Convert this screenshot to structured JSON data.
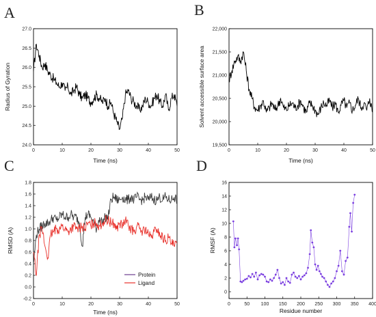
{
  "chart_data": [
    {
      "panel": "A",
      "type": "line",
      "xlabel": "Time (ns)",
      "ylabel": "Radius of Gyration",
      "xlim": [
        0,
        50
      ],
      "ylim": [
        24.0,
        27.0
      ],
      "xticks": [
        0,
        10,
        20,
        30,
        40,
        50
      ],
      "yticks": [
        24.0,
        24.5,
        25.0,
        25.5,
        26.0,
        26.5,
        27.0
      ],
      "ytick_decimals": 1,
      "series": [
        {
          "color": "#000000",
          "x": [
            0,
            1,
            2,
            3,
            4,
            5,
            6,
            7,
            8,
            9,
            10,
            11,
            12,
            13,
            14,
            15,
            16,
            17,
            18,
            19,
            20,
            21,
            22,
            23,
            24,
            25,
            26,
            27,
            28,
            29,
            30,
            31,
            32,
            33,
            34,
            35,
            36,
            37,
            38,
            39,
            40,
            41,
            42,
            43,
            44,
            45,
            46,
            47,
            48,
            49,
            50
          ],
          "values": [
            25.9,
            26.6,
            26.3,
            26.0,
            26.1,
            25.9,
            25.8,
            25.7,
            25.6,
            25.5,
            25.6,
            25.4,
            25.5,
            25.3,
            25.4,
            25.5,
            25.3,
            25.2,
            25.3,
            25.2,
            25.1,
            25.2,
            25.3,
            25.2,
            25.1,
            25.2,
            25.0,
            25.1,
            24.8,
            24.6,
            24.4,
            24.7,
            25.3,
            25.4,
            25.2,
            25.1,
            25.0,
            24.9,
            25.0,
            25.2,
            25.1,
            25.0,
            25.2,
            25.3,
            25.1,
            25.0,
            25.3,
            24.9,
            25.2,
            25.3,
            25.0
          ]
        }
      ]
    },
    {
      "panel": "B",
      "type": "line",
      "xlabel": "Time (ns)",
      "ylabel": "Solvent accessible surface area",
      "xlim": [
        0,
        50
      ],
      "ylim": [
        19500,
        22000
      ],
      "xticks": [
        0,
        10,
        20,
        30,
        40,
        50
      ],
      "yticks": [
        19500,
        20000,
        20500,
        21000,
        21500,
        22000
      ],
      "ytick_labels": [
        "19,500",
        "20,000",
        "20,500",
        "21,000",
        "21,500",
        "22,000"
      ],
      "series": [
        {
          "color": "#000000",
          "x": [
            0,
            1,
            2,
            3,
            4,
            5,
            6,
            7,
            8,
            9,
            10,
            11,
            12,
            13,
            14,
            15,
            16,
            17,
            18,
            19,
            20,
            21,
            22,
            23,
            24,
            25,
            26,
            27,
            28,
            29,
            30,
            31,
            32,
            33,
            34,
            35,
            36,
            37,
            38,
            39,
            40,
            41,
            42,
            43,
            44,
            45,
            46,
            47,
            48,
            49,
            50
          ],
          "values": [
            20900,
            21100,
            21300,
            21400,
            21300,
            21500,
            21100,
            20700,
            20500,
            20300,
            20250,
            20350,
            20450,
            20200,
            20300,
            20400,
            20250,
            20350,
            20500,
            20300,
            20250,
            20350,
            20400,
            20300,
            20350,
            20450,
            20300,
            20200,
            20400,
            20350,
            20250,
            20150,
            20300,
            20400,
            20350,
            20450,
            20300,
            20400,
            20200,
            20350,
            20450,
            20300,
            20400,
            20250,
            20350,
            20500,
            20300,
            20400,
            20250,
            20500,
            20200
          ]
        }
      ]
    },
    {
      "panel": "C",
      "type": "line",
      "xlabel": "Time (ns)",
      "ylabel": "RMSD (A)",
      "xlim": [
        0,
        50
      ],
      "ylim": [
        -0.2,
        1.8
      ],
      "xticks": [
        0,
        10,
        20,
        30,
        40,
        50
      ],
      "yticks": [
        -0.2,
        0.0,
        0.2,
        0.4,
        0.6,
        0.8,
        1.0,
        1.2,
        1.4,
        1.6,
        1.8
      ],
      "ytick_decimals": 1,
      "legend_position": "bottom-right",
      "series": [
        {
          "name": "Protein",
          "color": "#3a3a3a",
          "legend_color": "#6a3d8f",
          "x": [
            0,
            1,
            2,
            3,
            4,
            5,
            6,
            7,
            8,
            9,
            10,
            11,
            12,
            13,
            14,
            15,
            16,
            17,
            18,
            19,
            20,
            21,
            22,
            23,
            24,
            25,
            26,
            27,
            28,
            29,
            30,
            31,
            32,
            33,
            34,
            35,
            36,
            37,
            38,
            39,
            40,
            41,
            42,
            43,
            44,
            45,
            46,
            47,
            48,
            49,
            50
          ],
          "values": [
            0.4,
            0.9,
            1.0,
            1.05,
            1.1,
            1.1,
            1.15,
            1.2,
            1.15,
            1.2,
            1.25,
            1.2,
            1.2,
            1.25,
            1.2,
            1.2,
            1.1,
            0.7,
            1.2,
            1.25,
            1.2,
            1.1,
            1.0,
            1.2,
            1.1,
            1.2,
            1.2,
            1.5,
            1.55,
            1.5,
            1.5,
            1.55,
            1.5,
            1.5,
            1.55,
            1.5,
            1.55,
            1.5,
            1.5,
            1.55,
            1.5,
            1.55,
            1.5,
            1.5,
            1.55,
            1.5,
            1.55,
            1.5,
            1.5,
            1.55,
            1.5
          ]
        },
        {
          "name": "Ligand",
          "color": "#e8302a",
          "legend_color": "#e8302a",
          "x": [
            0,
            1,
            2,
            3,
            4,
            5,
            6,
            7,
            8,
            9,
            10,
            11,
            12,
            13,
            14,
            15,
            16,
            17,
            18,
            19,
            20,
            21,
            22,
            23,
            24,
            25,
            26,
            27,
            28,
            29,
            30,
            31,
            32,
            33,
            34,
            35,
            36,
            37,
            38,
            39,
            40,
            41,
            42,
            43,
            44,
            45,
            46,
            47,
            48,
            49,
            50
          ],
          "values": [
            0.6,
            0.2,
            0.9,
            1.0,
            0.7,
            0.5,
            0.9,
            0.95,
            1.0,
            1.0,
            1.05,
            1.0,
            0.95,
            1.0,
            1.05,
            1.0,
            1.0,
            1.05,
            1.0,
            1.1,
            1.05,
            1.1,
            1.1,
            1.05,
            1.1,
            1.15,
            1.15,
            1.1,
            1.1,
            1.0,
            1.1,
            1.05,
            1.15,
            1.05,
            1.0,
            0.95,
            1.05,
            1.0,
            0.95,
            1.0,
            0.9,
            0.85,
            0.95,
            1.0,
            0.9,
            0.85,
            0.8,
            0.85,
            0.75,
            0.7,
            0.75
          ]
        }
      ]
    },
    {
      "panel": "D",
      "type": "line",
      "xlabel": "Residue number",
      "ylabel": "RMSF (A)",
      "xlim": [
        0,
        400
      ],
      "ylim": [
        -1,
        16
      ],
      "xticks": [
        0,
        50,
        100,
        150,
        200,
        250,
        300,
        350,
        400
      ],
      "yticks": [
        0,
        2,
        4,
        6,
        8,
        10,
        12,
        14,
        16
      ],
      "markers": true,
      "series": [
        {
          "color": "#7b3fe0",
          "x": [
            12,
            15,
            18,
            22,
            25,
            28,
            32,
            36,
            40,
            45,
            50,
            55,
            60,
            65,
            70,
            75,
            80,
            85,
            90,
            95,
            100,
            105,
            110,
            115,
            120,
            125,
            130,
            135,
            140,
            145,
            150,
            155,
            160,
            165,
            170,
            175,
            180,
            185,
            190,
            195,
            200,
            205,
            210,
            215,
            220,
            225,
            228,
            232,
            236,
            240,
            244,
            248,
            252,
            256,
            260,
            265,
            270,
            275,
            280,
            285,
            290,
            295,
            300,
            305,
            310,
            315,
            320,
            325,
            330,
            335,
            338,
            342,
            346,
            350
          ],
          "values": [
            10.3,
            6.5,
            7.8,
            6.8,
            7.8,
            6.2,
            1.5,
            1.4,
            1.6,
            1.8,
            1.9,
            2.3,
            2.1,
            2.6,
            2.2,
            2.8,
            1.8,
            2.4,
            2.6,
            2.5,
            2.2,
            1.5,
            1.4,
            1.8,
            1.6,
            2.0,
            2.5,
            3.2,
            2.0,
            1.2,
            1.4,
            1.0,
            2.0,
            1.5,
            1.3,
            2.5,
            2.8,
            2.2,
            2.0,
            2.3,
            1.8,
            2.2,
            2.4,
            2.7,
            3.5,
            5.5,
            9.0,
            7.2,
            6.5,
            4.0,
            3.2,
            3.8,
            3.0,
            2.6,
            2.2,
            2.0,
            1.5,
            1.0,
            0.7,
            1.2,
            1.5,
            2.0,
            3.0,
            3.8,
            6.0,
            3.0,
            2.5,
            4.5,
            5.0,
            9.5,
            11.5,
            8.8,
            13.0,
            14.2
          ]
        }
      ]
    }
  ]
}
